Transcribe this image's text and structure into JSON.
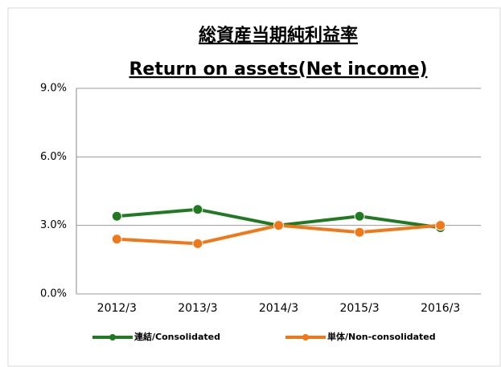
{
  "chart_data": {
    "type": "line",
    "title": "総資産当期純利益率",
    "subtitle": "Return on assets(Net income)",
    "categories": [
      "2012/3",
      "2013/3",
      "2014/3",
      "2015/3",
      "2016/3"
    ],
    "series": [
      {
        "name": "連結/Consolidated",
        "color": "#217a21",
        "values": [
          3.4,
          3.7,
          3.0,
          3.4,
          2.9
        ]
      },
      {
        "name": "単体/Non-consolidated",
        "color": "#f07818",
        "values": [
          2.4,
          2.2,
          3.0,
          2.7,
          3.0
        ]
      }
    ],
    "ylim": [
      0,
      9
    ],
    "yticks": [
      {
        "value": 0,
        "label": "0.0%"
      },
      {
        "value": 3,
        "label": "3.0%"
      },
      {
        "value": 6,
        "label": "6.0%"
      },
      {
        "value": 9,
        "label": "9.0%"
      }
    ],
    "grid": true,
    "legend": "bottom"
  }
}
